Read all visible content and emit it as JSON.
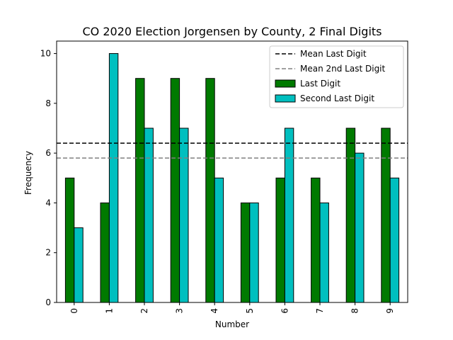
{
  "chart_data": {
    "type": "bar",
    "title": "CO 2020 Election Jorgensen by County, 2 Final Digits",
    "xlabel": "Number",
    "ylabel": "Frequency",
    "categories": [
      "0",
      "1",
      "2",
      "3",
      "4",
      "5",
      "6",
      "7",
      "8",
      "9"
    ],
    "ylim": [
      0,
      10.5
    ],
    "yticks": [
      0,
      2,
      4,
      6,
      8,
      10
    ],
    "series": [
      {
        "name": "Last Digit",
        "color": "#007a00",
        "values": [
          5,
          4,
          9,
          9,
          9,
          4,
          5,
          5,
          7,
          7
        ]
      },
      {
        "name": "Second Last Digit",
        "color": "#00bfbf",
        "values": [
          3,
          10,
          7,
          7,
          5,
          4,
          7,
          4,
          6,
          5
        ]
      }
    ],
    "reference_lines": [
      {
        "name": "Mean Last Digit",
        "value": 6.4,
        "color": "#000000",
        "style": "dashed"
      },
      {
        "name": "Mean 2nd Last Digit",
        "value": 5.8,
        "color": "#808080",
        "style": "dashed"
      }
    ],
    "legend_position": "top-right",
    "x_tick_rotation": "vertical",
    "grid": false
  }
}
